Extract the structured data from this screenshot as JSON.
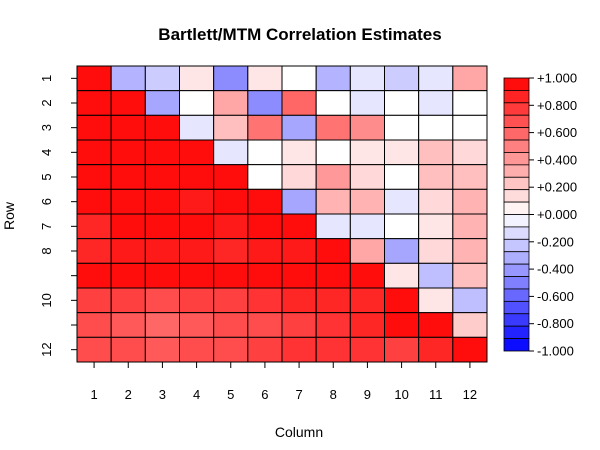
{
  "chart_data": {
    "type": "heatmap",
    "title": "Bartlett/MTM Correlation Estimates",
    "xlabel": "Column",
    "ylabel": "Row",
    "x_tick_labels": [
      "1",
      "2",
      "3",
      "4",
      "5",
      "6",
      "7",
      "8",
      "9",
      "10",
      "11",
      "12"
    ],
    "y_tick_labels": [
      "1",
      "2",
      "3",
      "4",
      "5",
      "6",
      "7",
      "8",
      "",
      "10",
      "",
      "12"
    ],
    "colorbar": {
      "range": [
        -1.0,
        1.0
      ],
      "tick_labels": [
        "-1.000",
        "-0.800",
        "-0.600",
        "-0.400",
        "-0.200",
        "+0.000",
        "+0.200",
        "+0.400",
        "+0.600",
        "+0.800",
        "+1.000"
      ],
      "low_color": "#0000FF",
      "mid_color": "#FFFFFF",
      "high_color": "#FF0000"
    },
    "values": [
      [
        0.95,
        -0.3,
        -0.2,
        0.1,
        -0.45,
        0.1,
        0.0,
        -0.3,
        -0.1,
        -0.2,
        -0.1,
        0.35
      ],
      [
        0.95,
        0.95,
        -0.35,
        0.0,
        0.35,
        -0.45,
        0.6,
        0.0,
        -0.1,
        0.0,
        -0.1,
        0.0
      ],
      [
        0.95,
        0.95,
        0.95,
        -0.1,
        0.25,
        0.55,
        -0.35,
        0.55,
        0.45,
        0.0,
        0.0,
        0.0
      ],
      [
        0.95,
        0.95,
        0.95,
        0.95,
        -0.1,
        0.0,
        0.1,
        0.0,
        0.1,
        0.1,
        0.25,
        0.15
      ],
      [
        0.95,
        0.95,
        0.95,
        0.95,
        0.95,
        0.0,
        0.15,
        0.4,
        0.15,
        0.0,
        0.25,
        0.25
      ],
      [
        0.95,
        0.95,
        0.95,
        0.9,
        0.95,
        0.95,
        -0.35,
        0.3,
        0.3,
        -0.1,
        0.15,
        0.3
      ],
      [
        0.85,
        0.95,
        0.95,
        0.95,
        0.9,
        0.95,
        0.95,
        -0.1,
        -0.1,
        0.0,
        0.1,
        0.3
      ],
      [
        0.85,
        0.9,
        0.9,
        0.9,
        0.85,
        0.9,
        0.9,
        0.95,
        0.35,
        -0.35,
        0.15,
        0.3
      ],
      [
        0.95,
        0.95,
        0.95,
        0.95,
        0.95,
        0.95,
        0.95,
        0.95,
        0.95,
        0.1,
        -0.25,
        0.25
      ],
      [
        0.75,
        0.75,
        0.7,
        0.75,
        0.75,
        0.8,
        0.85,
        0.85,
        0.85,
        0.95,
        0.1,
        -0.25
      ],
      [
        0.7,
        0.65,
        0.6,
        0.65,
        0.7,
        0.7,
        0.75,
        0.8,
        0.85,
        0.95,
        0.95,
        0.2
      ],
      [
        0.7,
        0.7,
        0.65,
        0.7,
        0.7,
        0.75,
        0.8,
        0.8,
        0.8,
        0.75,
        0.85,
        0.95
      ]
    ]
  }
}
